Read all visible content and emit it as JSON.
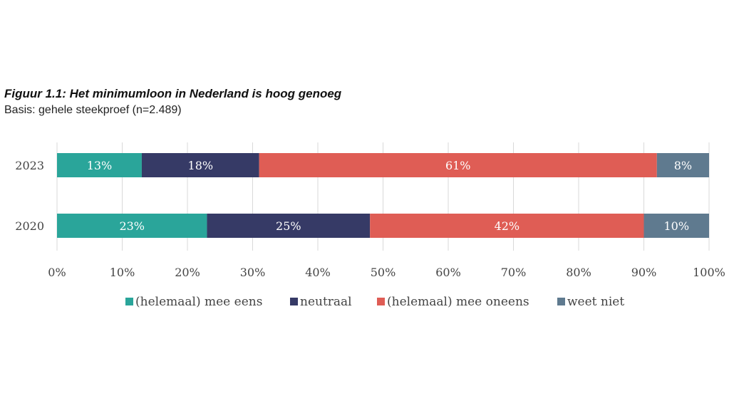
{
  "title": "Figuur 1.1: Het minimumloon in Nederland is hoog genoeg",
  "subtitle": "Basis: gehele steekproef (n=2.489)",
  "chart_data": {
    "type": "bar",
    "orientation": "horizontal",
    "stacked": true,
    "categories": [
      "2023",
      "2020"
    ],
    "series": [
      {
        "name": "(helemaal) mee eens",
        "values": [
          13,
          23
        ],
        "labels": [
          "13%",
          "23%"
        ],
        "color": "#2aa59a"
      },
      {
        "name": "neutraal",
        "values": [
          18,
          25
        ],
        "labels": [
          "18%",
          "25%"
        ],
        "color": "#363a66"
      },
      {
        "name": "(helemaal) mee oneens",
        "values": [
          61,
          42
        ],
        "labels": [
          "61%",
          "42%"
        ],
        "color": "#df5d55"
      },
      {
        "name": "weet niet",
        "values": [
          8,
          10
        ],
        "labels": [
          "8%",
          "10%"
        ],
        "color": "#5f7a8f"
      }
    ],
    "xlim": [
      0,
      100
    ],
    "xticks": [
      "0%",
      "10%",
      "20%",
      "30%",
      "40%",
      "50%",
      "60%",
      "70%",
      "80%",
      "90%",
      "100%"
    ],
    "grid": true,
    "legend": "bottom"
  }
}
